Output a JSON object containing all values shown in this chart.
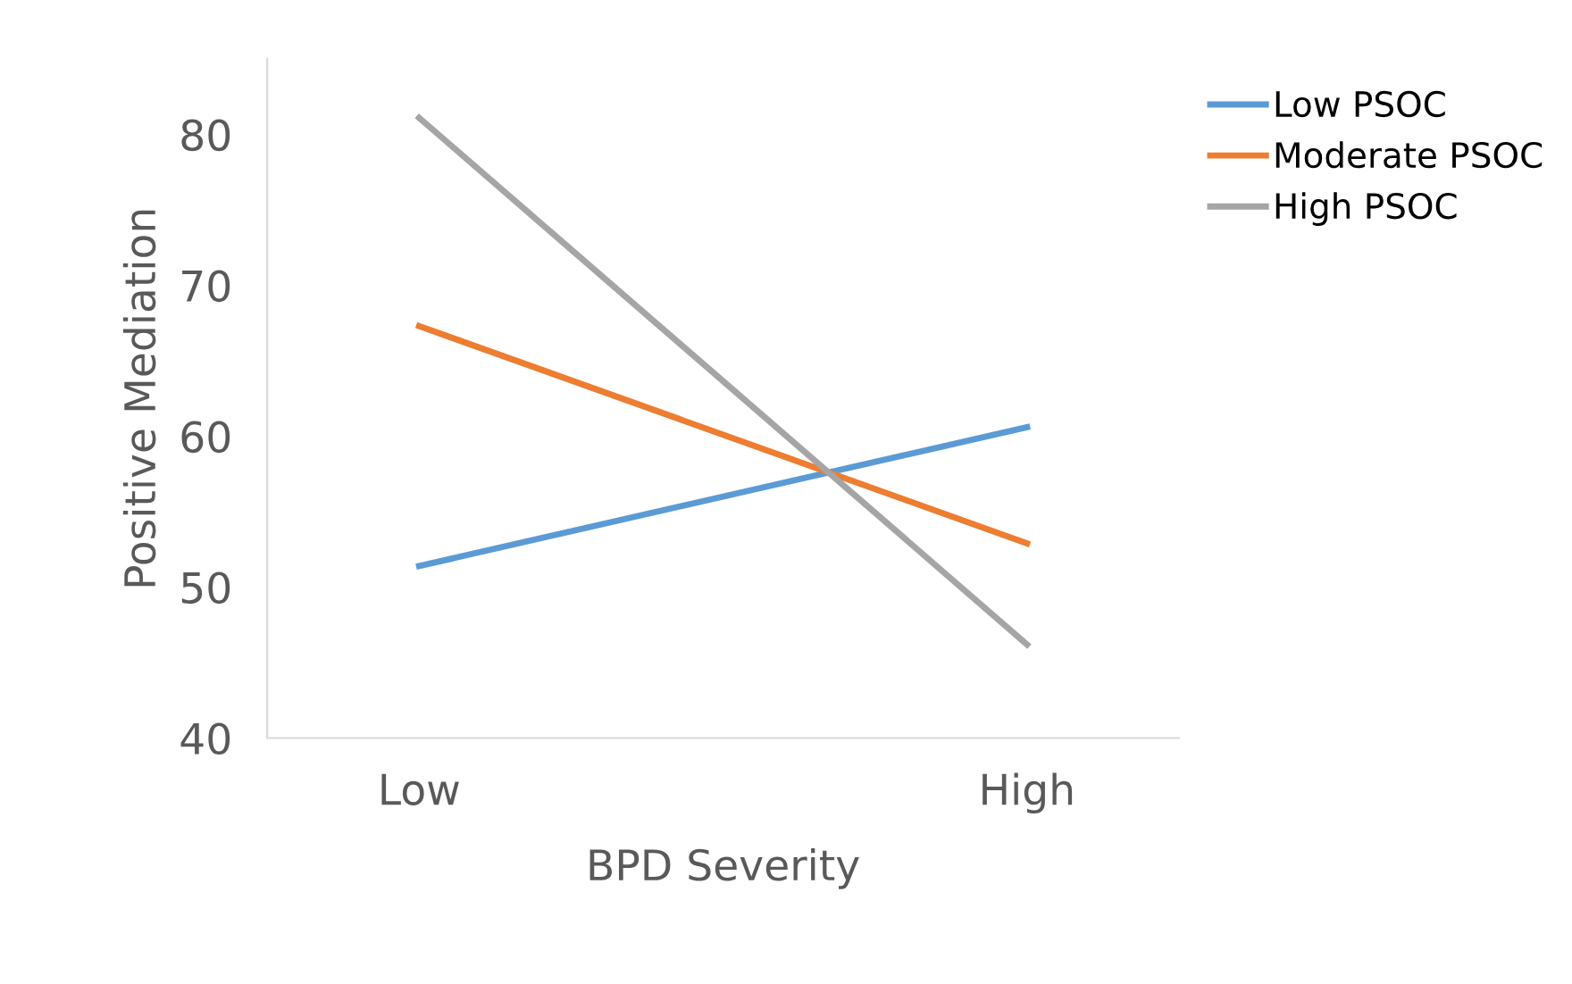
{
  "chart_data": {
    "type": "line",
    "xlabel": "BPD Severity",
    "ylabel": "Positive Mediation",
    "categories": [
      "Low",
      "High"
    ],
    "series": [
      {
        "name": "Low PSOC",
        "color": "#5b9bd5",
        "values": [
          51.4,
          60.6
        ]
      },
      {
        "name": "Moderate PSOC",
        "color": "#ed7d31",
        "values": [
          67.3,
          52.9
        ]
      },
      {
        "name": "High PSOC",
        "color": "#a5a5a5",
        "values": [
          81.1,
          46.2
        ]
      }
    ],
    "ylim": [
      40,
      85
    ],
    "yticks": [
      40,
      50,
      60,
      70,
      80
    ],
    "grid": false,
    "legend": "top right",
    "marker": "none",
    "line_style": "solid"
  }
}
